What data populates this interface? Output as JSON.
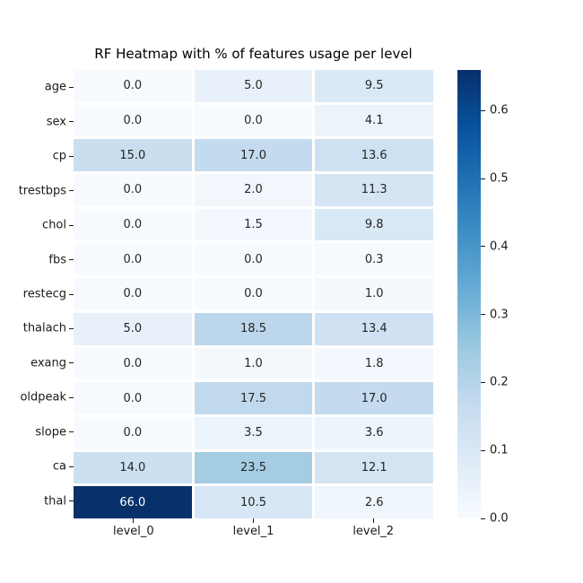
{
  "title": "RF Heatmap with % of features usage per level",
  "chart_data": {
    "type": "heatmap",
    "title": "RF Heatmap with % of features usage per level",
    "rows": [
      "age",
      "sex",
      "cp",
      "trestbps",
      "chol",
      "fbs",
      "restecg",
      "thalach",
      "exang",
      "oldpeak",
      "slope",
      "ca",
      "thal"
    ],
    "columns": [
      "level_0",
      "level_1",
      "level_2"
    ],
    "values": [
      [
        0.0,
        5.0,
        9.5
      ],
      [
        0.0,
        0.0,
        4.1
      ],
      [
        15.0,
        17.0,
        13.6
      ],
      [
        0.0,
        2.0,
        11.3
      ],
      [
        0.0,
        1.5,
        9.8
      ],
      [
        0.0,
        0.0,
        0.3
      ],
      [
        0.0,
        0.0,
        1.0
      ],
      [
        5.0,
        18.5,
        13.4
      ],
      [
        0.0,
        1.0,
        1.8
      ],
      [
        0.0,
        17.5,
        17.0
      ],
      [
        0.0,
        3.5,
        3.6
      ],
      [
        14.0,
        23.5,
        12.1
      ],
      [
        66.0,
        10.5,
        2.6
      ]
    ],
    "annotation_decimals": 1,
    "colormap": {
      "name": "Blues",
      "stops": [
        "#f7fbff",
        "#deebf7",
        "#c6dbef",
        "#9ecae1",
        "#6baed6",
        "#4292c6",
        "#2171b5",
        "#08519c",
        "#08306b"
      ]
    },
    "scale": {
      "vmin": 0.0,
      "vmax": 0.66
    },
    "colorbar": {
      "ticks": [
        "0.0",
        "0.1",
        "0.2",
        "0.3",
        "0.4",
        "0.5",
        "0.6"
      ],
      "position": "right"
    },
    "grid_line_color": "#ffffff",
    "annotation_color_light_cells": "#262626",
    "annotation_color_dark_cells": "#ffffff",
    "legend_position": "none"
  }
}
